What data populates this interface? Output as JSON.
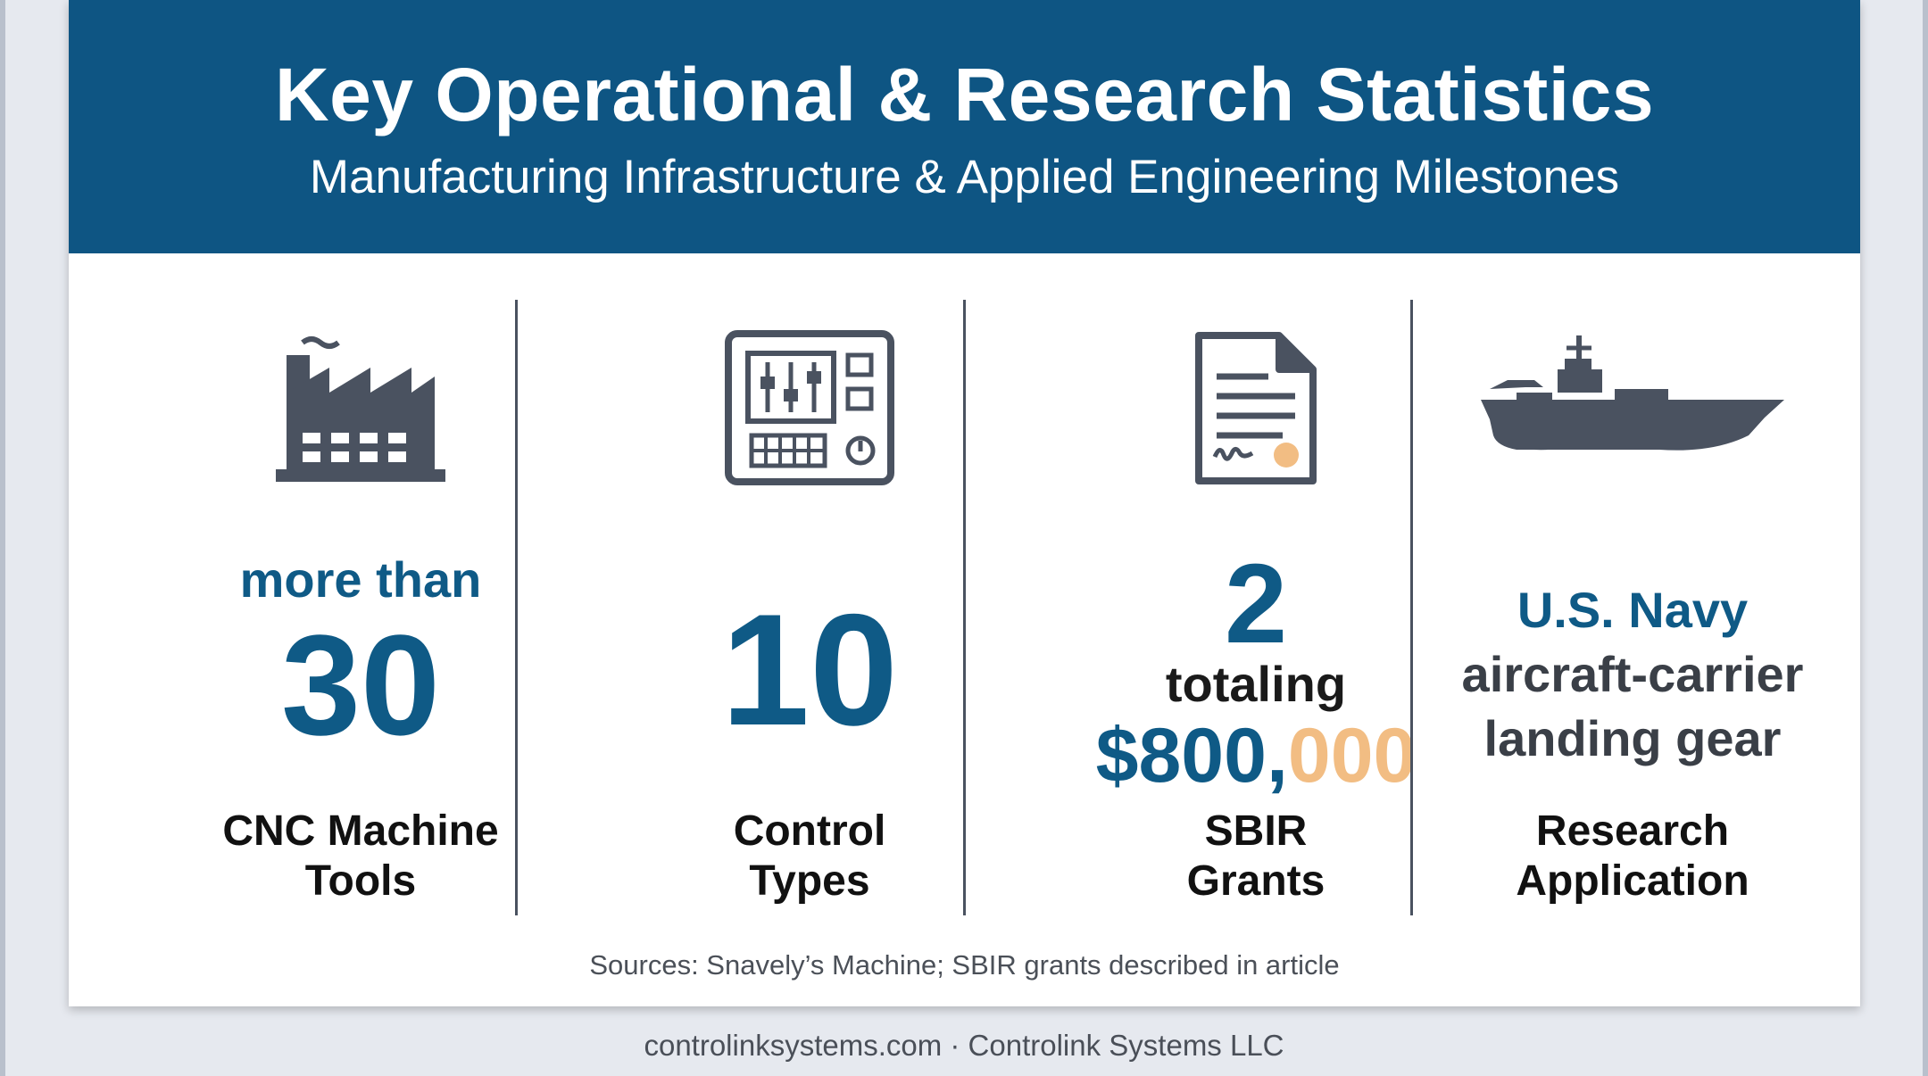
{
  "header": {
    "title": "Key Operational & Research Statistics",
    "subtitle": "Manufacturing Infrastructure & Applied Engineering Milestones"
  },
  "stats": [
    {
      "icon": "factory-icon",
      "prefix": "more than",
      "value": "30",
      "label_line1": "CNC Machine",
      "label_line2": "Tools"
    },
    {
      "icon": "control-panel-icon",
      "value": "10",
      "label_line1": "Control",
      "label_line2": "Types"
    },
    {
      "icon": "document-signature-icon",
      "value": "2",
      "mid": "totaling",
      "amount_main": "$800,",
      "amount_tail": "000",
      "label_line1": "SBIR",
      "label_line2": "Grants"
    },
    {
      "icon": "aircraft-carrier-icon",
      "line1": "U.S. Navy",
      "line2": "aircraft-carrier",
      "line3": "landing gear",
      "label_line1": "Research",
      "label_line2": "Application"
    }
  ],
  "source": "Sources: Snavely’s Machine; SBIR grants described in article",
  "footer": "controlinksystems.com · Controlink Systems LLC",
  "colors": {
    "banner": "#0e5583",
    "accent_blue": "#0f5a86",
    "accent_orange": "#f2bd83",
    "icon": "#4a5260"
  }
}
